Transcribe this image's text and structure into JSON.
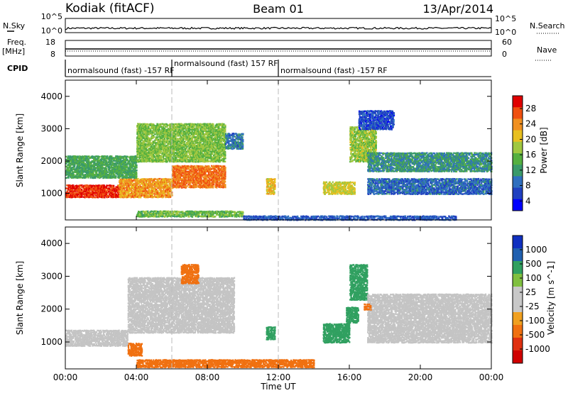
{
  "header": {
    "site": "Kodiak (fitACF)",
    "beam": "Beam 01",
    "date": "13/Apr/2014"
  },
  "summary_panel": {
    "nsky_label": "N.Sky",
    "nsearch_label": "N.Search",
    "nsky_ticks": [
      "10^5",
      "10^0"
    ],
    "nsearch_ticks": [
      "10^5",
      "10^0"
    ],
    "freq_label": "Freq.",
    "freq_unit": "[MHz]",
    "freq_ticks": [
      "18",
      "8"
    ],
    "nave_label": "Nave",
    "nave_ticks": [
      "60",
      "0"
    ],
    "cpid_label": "CPID",
    "cpid_segments": [
      {
        "label": "normalsound (fast) -157 RF",
        "start_h": 0,
        "end_h": 6
      },
      {
        "label": "normalsound (fast) 157 RF",
        "start_h": 6,
        "end_h": 12
      },
      {
        "label": "normalsound (fast) -157 RF",
        "start_h": 12,
        "end_h": 24
      }
    ]
  },
  "colors": {
    "power": [
      "#0000ff",
      "#2040c0",
      "#2f6fbf",
      "#3a9a6a",
      "#55b040",
      "#a0c840",
      "#e8c020",
      "#f09020",
      "#f05010",
      "#e00000"
    ],
    "velocity": [
      "#1030c0",
      "#2060b0",
      "#30a060",
      "#80c040",
      "#c8c8c8",
      "#c8c8c8",
      "#f0a020",
      "#f07010",
      "#e03010",
      "#d00000"
    ],
    "gray_scatter": "#c4c4c4"
  },
  "chart_data": [
    {
      "type": "heatmap",
      "title": "Power",
      "ylabel": "Slant Range [km]",
      "xlabel": "",
      "x_range_hours": [
        0,
        24
      ],
      "ylim": [
        180,
        4500
      ],
      "yticks": [
        "4000",
        "3000",
        "2000",
        "1000"
      ],
      "ytick_values": [
        4000,
        3000,
        2000,
        1000
      ],
      "colorbar_label": "Power [dB]",
      "colorbar_ticks": [
        "28",
        "24",
        "20",
        "16",
        "12",
        "8",
        "4"
      ],
      "colorbar_range": [
        0,
        30
      ],
      "echo_regions": [
        {
          "t0": 0.0,
          "t1": 3.0,
          "r0": 900,
          "r1": 1300,
          "value": 27
        },
        {
          "t0": 3.0,
          "t1": 6.0,
          "r0": 900,
          "r1": 1500,
          "value": 22
        },
        {
          "t0": 6.0,
          "t1": 9.0,
          "r0": 1200,
          "r1": 1900,
          "value": 24
        },
        {
          "t0": 0.0,
          "t1": 4.0,
          "r0": 1500,
          "r1": 2200,
          "value": 12
        },
        {
          "t0": 4.0,
          "t1": 9.0,
          "r0": 2000,
          "r1": 3200,
          "value": 15
        },
        {
          "t0": 9.0,
          "t1": 10.0,
          "r0": 2400,
          "r1": 2900,
          "value": 8
        },
        {
          "t0": 11.3,
          "t1": 11.8,
          "r0": 1000,
          "r1": 1500,
          "value": 20
        },
        {
          "t0": 14.5,
          "t1": 16.3,
          "r0": 1000,
          "r1": 1400,
          "value": 18
        },
        {
          "t0": 16.0,
          "t1": 17.5,
          "r0": 2000,
          "r1": 3100,
          "value": 16
        },
        {
          "t0": 17.0,
          "t1": 24.0,
          "r0": 1700,
          "r1": 2300,
          "value": 10
        },
        {
          "t0": 17.0,
          "t1": 24.0,
          "r0": 1000,
          "r1": 1500,
          "value": 7
        },
        {
          "t0": 16.5,
          "t1": 18.5,
          "r0": 3000,
          "r1": 3600,
          "value": 5
        },
        {
          "t0": 4.0,
          "t1": 10.0,
          "r0": 300,
          "r1": 500,
          "value": 14
        },
        {
          "t0": 10.0,
          "t1": 22.0,
          "r0": 200,
          "r1": 350,
          "value": 6
        }
      ]
    },
    {
      "type": "heatmap",
      "title": "Velocity",
      "ylabel": "Slant Range [km]",
      "xlabel": "Time UT",
      "x_range_hours": [
        0,
        24
      ],
      "xticks": [
        "00:00",
        "04:00",
        "08:00",
        "12:00",
        "16:00",
        "20:00",
        "00:00"
      ],
      "xtick_values": [
        0,
        4,
        8,
        12,
        16,
        20,
        24
      ],
      "ylim": [
        180,
        4500
      ],
      "yticks": [
        "4000",
        "3000",
        "2000",
        "1000"
      ],
      "ytick_values": [
        4000,
        3000,
        2000,
        1000
      ],
      "colorbar_label": "Velocity [m s^-1]",
      "colorbar_ticks": [
        "1000",
        "500",
        "100",
        "25",
        "-25",
        "-100",
        "-500",
        "-1000"
      ],
      "colorbar_range": [
        -1000,
        1000
      ],
      "echo_regions": [
        {
          "t0": 0.0,
          "t1": 3.5,
          "r0": 900,
          "r1": 1400,
          "value": 0
        },
        {
          "t0": 3.5,
          "t1": 4.3,
          "r0": 600,
          "r1": 1000,
          "value": -300
        },
        {
          "t0": 3.5,
          "t1": 9.5,
          "r0": 1300,
          "r1": 3000,
          "value": 0
        },
        {
          "t0": 6.5,
          "t1": 7.5,
          "r0": 2800,
          "r1": 3400,
          "value": -150
        },
        {
          "t0": 11.3,
          "t1": 11.8,
          "r0": 1100,
          "r1": 1500,
          "value": 120
        },
        {
          "t0": 14.5,
          "t1": 16.0,
          "r0": 1000,
          "r1": 1600,
          "value": 150
        },
        {
          "t0": 15.8,
          "t1": 16.5,
          "r0": 1600,
          "r1": 2100,
          "value": 200
        },
        {
          "t0": 16.0,
          "t1": 17.0,
          "r0": 2300,
          "r1": 3400,
          "value": 180
        },
        {
          "t0": 17.0,
          "t1": 24.0,
          "r0": 1000,
          "r1": 2500,
          "value": 0
        },
        {
          "t0": 16.8,
          "t1": 17.2,
          "r0": 2000,
          "r1": 2200,
          "value": -300
        },
        {
          "t0": 4.0,
          "t1": 14.0,
          "r0": 250,
          "r1": 500,
          "value": -120
        }
      ]
    }
  ]
}
